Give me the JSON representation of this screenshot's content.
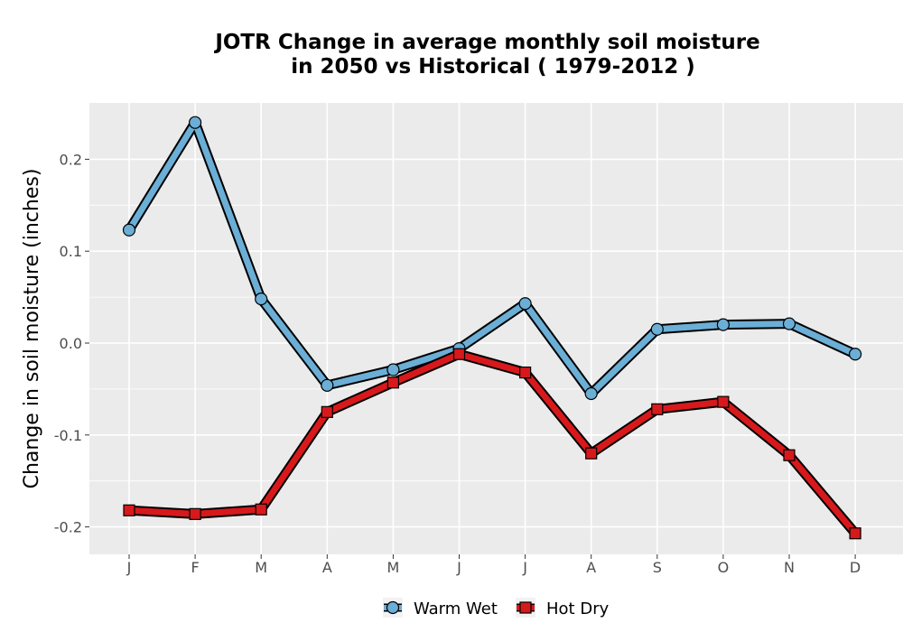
{
  "chart_data": {
    "type": "line",
    "title_lines": [
      "JOTR  Change in average monthly soil moisture",
      "in 2050 vs Historical ( 1979-2012 )"
    ],
    "xlabel": "",
    "ylabel": "Change in soil moisture (inches)",
    "categories": [
      "J",
      "F",
      "M",
      "A",
      "M",
      "J",
      "J",
      "A",
      "S",
      "O",
      "N",
      "D"
    ],
    "ylim": [
      -0.23,
      0.26
    ],
    "yticks": [
      -0.2,
      -0.1,
      0.0,
      0.1,
      0.2
    ],
    "ytick_labels": [
      "-0.2",
      "-0.1",
      "0.0",
      "0.1",
      "0.2"
    ],
    "grid": true,
    "legend_position": "bottom",
    "series": [
      {
        "name": "Warm Wet",
        "marker": "circle",
        "color": "#6baed6",
        "values": [
          0.123,
          0.24,
          0.048,
          -0.046,
          -0.029,
          -0.006,
          0.043,
          -0.055,
          0.015,
          0.02,
          0.021,
          -0.012
        ]
      },
      {
        "name": "Hot Dry",
        "marker": "square",
        "color": "#d7191c",
        "values": [
          -0.182,
          -0.186,
          -0.181,
          -0.075,
          -0.043,
          -0.012,
          -0.032,
          -0.12,
          -0.072,
          -0.064,
          -0.122,
          -0.207
        ]
      }
    ]
  }
}
